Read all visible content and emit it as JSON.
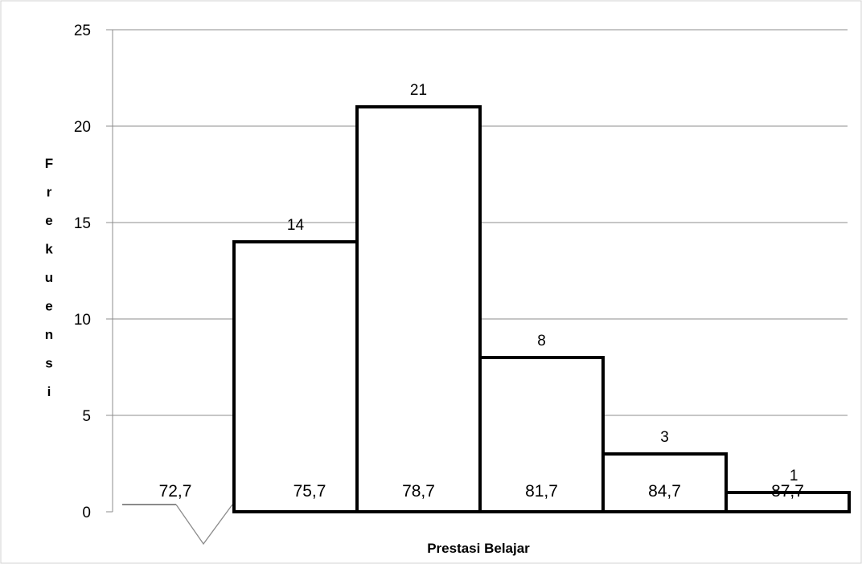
{
  "chart_data": {
    "type": "bar",
    "categories": [
      "72,7",
      "75,7",
      "78,7",
      "81,7",
      "84,7",
      "87,7"
    ],
    "values": [
      0,
      14,
      21,
      8,
      3,
      1
    ],
    "data_labels": [
      "",
      "14",
      "21",
      "8",
      "3",
      "1"
    ],
    "xlabel": "Prestasi Belajar",
    "ylabel": "Frekuensi",
    "ylim": [
      0,
      25
    ],
    "yticks": [
      "0",
      "5",
      "10",
      "15",
      "20",
      "25"
    ],
    "grid": true,
    "legend": "none",
    "axis_break": true,
    "bar_style": "histogram, no gaps",
    "colors": {
      "bar_fill": "#ffffff",
      "bar_stroke": "#000000",
      "grid": "#8c8c8c",
      "axis": "#8c8c8c"
    }
  }
}
